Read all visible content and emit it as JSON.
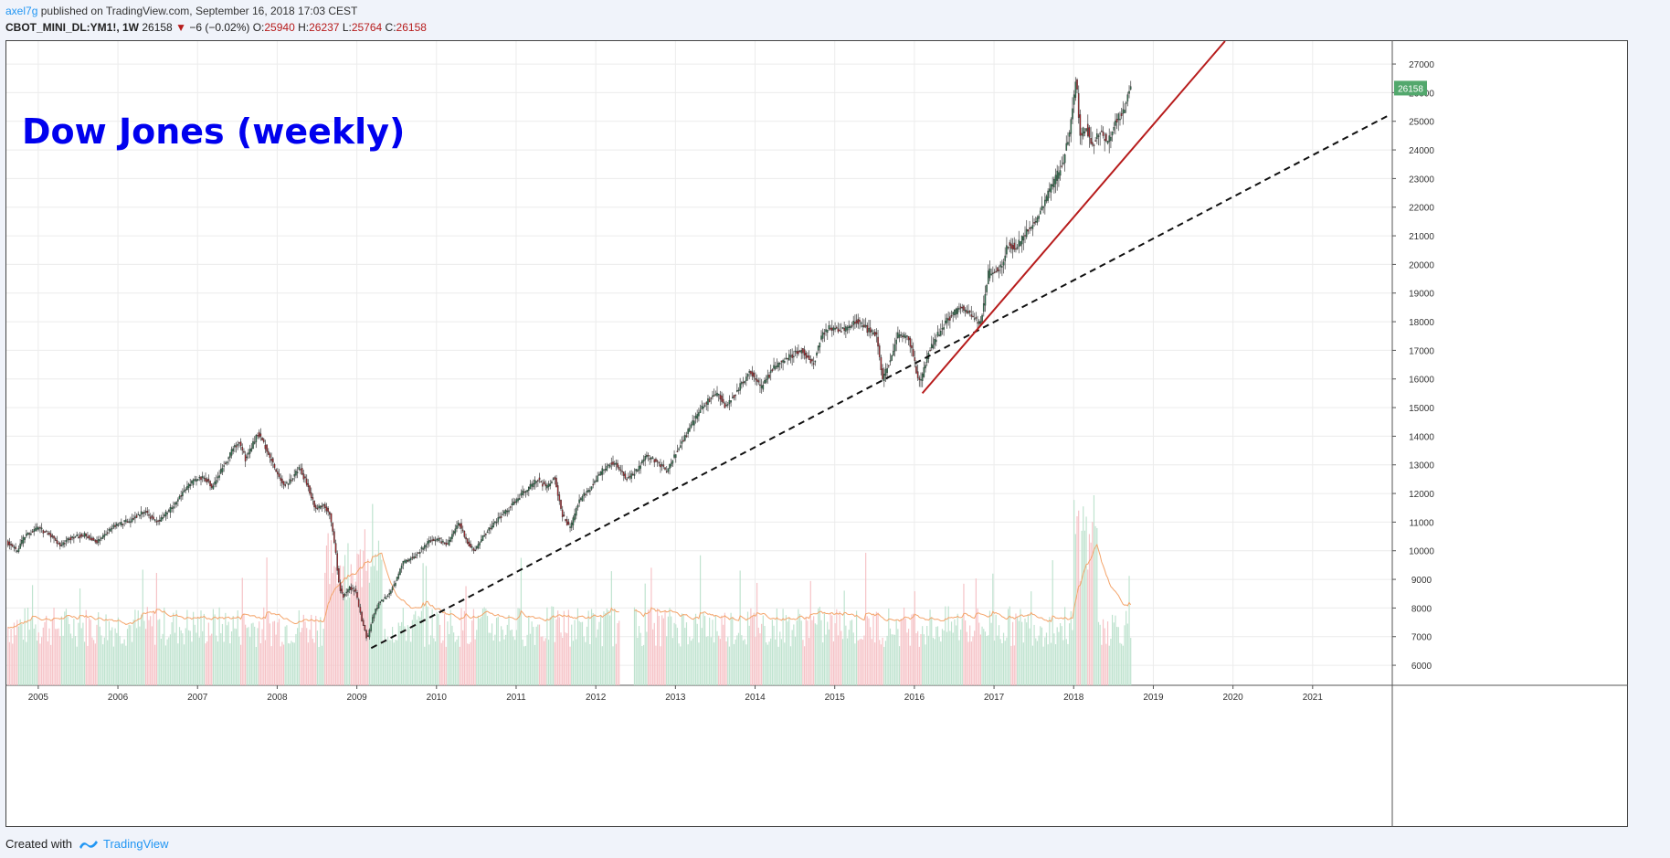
{
  "header": {
    "author": "axel7g",
    "published_text": "published on TradingView.com, September 16, 2018 17:03 CEST",
    "symbol": "CBOT_MINI_DL:YM1!, 1W",
    "last": "26158",
    "down_arrow": "▼",
    "change": "−6 (−0.02%)",
    "o_label": "O:",
    "o_value": "25940",
    "h_label": "H:",
    "h_value": "26237",
    "l_label": "L:",
    "l_value": "25764",
    "c_label": "C:",
    "c_value": "26158"
  },
  "footer": {
    "created_with": "Created with",
    "brand": "TradingView"
  },
  "colors": {
    "up": "#2e7d52",
    "down": "#b3262b",
    "trend_red": "#b71c1c",
    "trend_dashed": "#111111",
    "volume_up": "#bfe3cf",
    "volume_down": "#f6c3c7",
    "volume_ma": "#f4a46a",
    "title": "#0000ee",
    "price_badge": "#53a86d"
  },
  "chart_data": {
    "type": "candlestick",
    "title": "Dow Jones (weekly)",
    "interval": "1W",
    "x_range": [
      2004.6,
      2022.0
    ],
    "x_ticks": [
      "2005",
      "2006",
      "2007",
      "2008",
      "2009",
      "2010",
      "2011",
      "2012",
      "2013",
      "2014",
      "2015",
      "2016",
      "2017",
      "2018",
      "2019",
      "2020",
      "2021"
    ],
    "y_range": [
      5300,
      27800
    ],
    "y_ticks": [
      "27000",
      "26000",
      "25000",
      "24000",
      "23000",
      "22000",
      "21000",
      "20000",
      "19000",
      "18000",
      "17000",
      "16000",
      "15000",
      "14000",
      "13000",
      "12000",
      "11000",
      "10000",
      "9000",
      "8000",
      "7000",
      "6000"
    ],
    "last_price_label": "26158",
    "last_price": 26158,
    "price_path": [
      [
        2004.62,
        10300
      ],
      [
        2004.75,
        10000
      ],
      [
        2004.85,
        10500
      ],
      [
        2005.0,
        10800
      ],
      [
        2005.15,
        10600
      ],
      [
        2005.3,
        10200
      ],
      [
        2005.45,
        10500
      ],
      [
        2005.6,
        10550
      ],
      [
        2005.75,
        10300
      ],
      [
        2005.9,
        10700
      ],
      [
        2006.0,
        10900
      ],
      [
        2006.2,
        11100
      ],
      [
        2006.35,
        11400
      ],
      [
        2006.5,
        11000
      ],
      [
        2006.6,
        11200
      ],
      [
        2006.75,
        11700
      ],
      [
        2006.9,
        12300
      ],
      [
        2007.1,
        12600
      ],
      [
        2007.2,
        12200
      ],
      [
        2007.35,
        13000
      ],
      [
        2007.45,
        13500
      ],
      [
        2007.55,
        13800
      ],
      [
        2007.62,
        13200
      ],
      [
        2007.78,
        14100
      ],
      [
        2007.88,
        13600
      ],
      [
        2008.0,
        12800
      ],
      [
        2008.1,
        12300
      ],
      [
        2008.2,
        12500
      ],
      [
        2008.3,
        12900
      ],
      [
        2008.4,
        12300
      ],
      [
        2008.5,
        11500
      ],
      [
        2008.6,
        11600
      ],
      [
        2008.68,
        11300
      ],
      [
        2008.75,
        10000
      ],
      [
        2008.8,
        8700
      ],
      [
        2008.85,
        8400
      ],
      [
        2008.92,
        8700
      ],
      [
        2009.0,
        8600
      ],
      [
        2009.08,
        7600
      ],
      [
        2009.15,
        6900
      ],
      [
        2009.22,
        7700
      ],
      [
        2009.3,
        8200
      ],
      [
        2009.4,
        8400
      ],
      [
        2009.5,
        8900
      ],
      [
        2009.6,
        9600
      ],
      [
        2009.75,
        9800
      ],
      [
        2009.9,
        10300
      ],
      [
        2010.05,
        10400
      ],
      [
        2010.15,
        10200
      ],
      [
        2010.3,
        11000
      ],
      [
        2010.4,
        10300
      ],
      [
        2010.5,
        10000
      ],
      [
        2010.6,
        10500
      ],
      [
        2010.75,
        11000
      ],
      [
        2010.9,
        11400
      ],
      [
        2011.1,
        12000
      ],
      [
        2011.3,
        12500
      ],
      [
        2011.4,
        12200
      ],
      [
        2011.5,
        12600
      ],
      [
        2011.6,
        11200
      ],
      [
        2011.7,
        10800
      ],
      [
        2011.8,
        11700
      ],
      [
        2011.95,
        12200
      ],
      [
        2012.1,
        12800
      ],
      [
        2012.25,
        13100
      ],
      [
        2012.4,
        12500
      ],
      [
        2012.5,
        12700
      ],
      [
        2012.65,
        13300
      ],
      [
        2012.8,
        13100
      ],
      [
        2012.9,
        12800
      ],
      [
        2013.0,
        13300
      ],
      [
        2013.2,
        14300
      ],
      [
        2013.35,
        15000
      ],
      [
        2013.45,
        15300
      ],
      [
        2013.55,
        15500
      ],
      [
        2013.65,
        15000
      ],
      [
        2013.8,
        15600
      ],
      [
        2013.95,
        16300
      ],
      [
        2014.1,
        15700
      ],
      [
        2014.25,
        16400
      ],
      [
        2014.45,
        16800
      ],
      [
        2014.6,
        17000
      ],
      [
        2014.75,
        16500
      ],
      [
        2014.85,
        17500
      ],
      [
        2014.95,
        17800
      ],
      [
        2015.1,
        17700
      ],
      [
        2015.3,
        18000
      ],
      [
        2015.45,
        17700
      ],
      [
        2015.55,
        17500
      ],
      [
        2015.62,
        16000
      ],
      [
        2015.72,
        16700
      ],
      [
        2015.82,
        17600
      ],
      [
        2015.95,
        17400
      ],
      [
        2016.05,
        16200
      ],
      [
        2016.1,
        15900
      ],
      [
        2016.2,
        17000
      ],
      [
        2016.35,
        17700
      ],
      [
        2016.5,
        18300
      ],
      [
        2016.62,
        18500
      ],
      [
        2016.75,
        18200
      ],
      [
        2016.85,
        17900
      ],
      [
        2016.95,
        19700
      ],
      [
        2017.1,
        19900
      ],
      [
        2017.2,
        20700
      ],
      [
        2017.3,
        20600
      ],
      [
        2017.45,
        21200
      ],
      [
        2017.6,
        21800
      ],
      [
        2017.75,
        22800
      ],
      [
        2017.88,
        23500
      ],
      [
        2017.97,
        24700
      ],
      [
        2018.05,
        26600
      ],
      [
        2018.1,
        24500
      ],
      [
        2018.18,
        24800
      ],
      [
        2018.25,
        24200
      ],
      [
        2018.35,
        24600
      ],
      [
        2018.45,
        24300
      ],
      [
        2018.55,
        25000
      ],
      [
        2018.65,
        25400
      ],
      [
        2018.72,
        26158
      ]
    ],
    "volume_scale_max": 11000,
    "volume_bars_note": "volume histogram drawn along bottom of price pane",
    "trendlines": [
      {
        "style": "dashed",
        "from": [
          2009.18,
          6600
        ],
        "to": [
          2021.95,
          25200
        ]
      },
      {
        "style": "solid",
        "from": [
          2016.1,
          15500
        ],
        "to": [
          2019.9,
          27800
        ]
      }
    ]
  }
}
